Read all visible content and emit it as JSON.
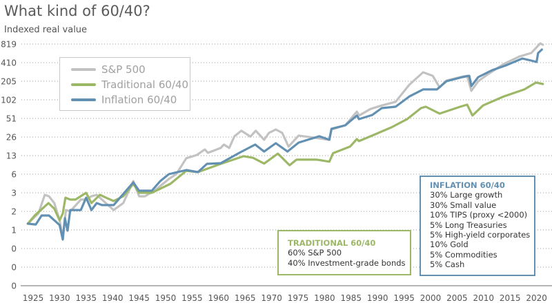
{
  "colors": {
    "sp500": "#c2c2c2",
    "traditional": "#9cb866",
    "inflation": "#6190b2",
    "grid": "#9a9a9a",
    "axis": "#b5b5b5"
  },
  "chart_data": {
    "type": "line",
    "title": "What kind of 60/40?",
    "ylabel": "Indexed real value",
    "xlabel": "",
    "yscale": "log2",
    "ylim": [
      0.1,
      819.2
    ],
    "xlim": [
      1923.5,
      2022
    ],
    "grid": true,
    "legend_placement": "top-left",
    "y_ticks": [
      {
        "value": 0.1,
        "label": "0"
      },
      {
        "value": 0.2,
        "label": "0"
      },
      {
        "value": 0.4,
        "label": "0"
      },
      {
        "value": 0.8,
        "label": "1"
      },
      {
        "value": 1.6,
        "label": "2"
      },
      {
        "value": 3.2,
        "label": "3"
      },
      {
        "value": 6.4,
        "label": "6"
      },
      {
        "value": 12.8,
        "label": "13"
      },
      {
        "value": 25.6,
        "label": "26"
      },
      {
        "value": 51.2,
        "label": "51"
      },
      {
        "value": 102.4,
        "label": "102"
      },
      {
        "value": 204.8,
        "label": "205"
      },
      {
        "value": 409.6,
        "label": "410"
      },
      {
        "value": 819.2,
        "label": "819"
      }
    ],
    "x_ticks": [
      "1925",
      "1930",
      "1935",
      "1940",
      "1945",
      "1950",
      "1955",
      "1960",
      "1965",
      "1970",
      "1975",
      "1980",
      "1985",
      "1990",
      "1995",
      "2000",
      "2005",
      "2010",
      "2015",
      "2020"
    ],
    "series": [
      {
        "name": "S&P 500",
        "key": "sp500",
        "points": [
          [
            1924,
            1.01
          ],
          [
            1926,
            1.48
          ],
          [
            1927.2,
            2.96
          ],
          [
            1928,
            2.81
          ],
          [
            1929,
            2.18
          ],
          [
            1930,
            1.15
          ],
          [
            1930.6,
            0.6
          ],
          [
            1931.2,
            1.68
          ],
          [
            1932,
            1.6
          ],
          [
            1934,
            2.48
          ],
          [
            1935,
            2.48
          ],
          [
            1936,
            2.81
          ],
          [
            1937,
            2.96
          ],
          [
            1938,
            2.48
          ],
          [
            1940.2,
            1.68
          ],
          [
            1942,
            2.18
          ],
          [
            1943.9,
            4.95
          ],
          [
            1945,
            2.81
          ],
          [
            1946.1,
            2.81
          ],
          [
            1948,
            3.5
          ],
          [
            1950.6,
            5.35
          ],
          [
            1952,
            6.4
          ],
          [
            1953.9,
            11.6
          ],
          [
            1955.9,
            13.1
          ],
          [
            1957.4,
            16.1
          ],
          [
            1958,
            14.2
          ],
          [
            1960.4,
            17.0
          ],
          [
            1961,
            19.3
          ],
          [
            1962,
            17.0
          ],
          [
            1963,
            26.3
          ],
          [
            1964.3,
            32.3
          ],
          [
            1966,
            26
          ],
          [
            1967,
            32.3
          ],
          [
            1968.6,
            23.1
          ],
          [
            1969.5,
            29.9
          ],
          [
            1970.8,
            33.9
          ],
          [
            1972,
            29.9
          ],
          [
            1973.2,
            17.9
          ],
          [
            1975.1,
            27.0
          ],
          [
            1978,
            25
          ],
          [
            1980.9,
            23.1
          ],
          [
            1981.3,
            33.9
          ],
          [
            1983.9,
            39.6
          ],
          [
            1986.1,
            66
          ],
          [
            1986.5,
            57
          ],
          [
            1988.7,
            73
          ],
          [
            1990.8,
            83
          ],
          [
            1993.4,
            95
          ],
          [
            1996,
            180
          ],
          [
            1998.6,
            286
          ],
          [
            2000.4,
            251
          ],
          [
            2001.7,
            163
          ],
          [
            2003,
            210
          ],
          [
            2005.6,
            239
          ],
          [
            2006.9,
            251
          ],
          [
            2007.7,
            143
          ],
          [
            2009,
            205
          ],
          [
            2010.8,
            265
          ],
          [
            2013.8,
            389
          ],
          [
            2016.8,
            516
          ],
          [
            2019,
            587
          ],
          [
            2020.7,
            840
          ],
          [
            2021.2,
            798
          ]
        ]
      },
      {
        "name": "Traditional 60/40",
        "key": "traditional",
        "points": [
          [
            1924,
            1.01
          ],
          [
            1925.3,
            1.37
          ],
          [
            1927.9,
            2.18
          ],
          [
            1929,
            1.77
          ],
          [
            1930,
            1.15
          ],
          [
            1930.6,
            1.48
          ],
          [
            1931.1,
            2.67
          ],
          [
            1932,
            2.48
          ],
          [
            1933,
            2.48
          ],
          [
            1935,
            3.2
          ],
          [
            1936,
            2.18
          ],
          [
            1937.6,
            2.96
          ],
          [
            1939,
            2.61
          ],
          [
            1940.2,
            2.35
          ],
          [
            1942,
            2.81
          ],
          [
            1943.9,
            4.47
          ],
          [
            1945,
            3.2
          ],
          [
            1947.4,
            3.2
          ],
          [
            1950.9,
            4.47
          ],
          [
            1953.9,
            7.28
          ],
          [
            1956.1,
            6.91
          ],
          [
            1960.4,
            9.41
          ],
          [
            1964.7,
            12.5
          ],
          [
            1966.5,
            11.8
          ],
          [
            1968.6,
            9.5
          ],
          [
            1971.2,
            13.8
          ],
          [
            1973.4,
            8.93
          ],
          [
            1974.7,
            11.0
          ],
          [
            1978.6,
            11.0
          ],
          [
            1980.9,
            10.2
          ],
          [
            1981.6,
            14.0
          ],
          [
            1984.8,
            17.9
          ],
          [
            1986.1,
            23.7
          ],
          [
            1986.5,
            22.0
          ],
          [
            1989,
            27.0
          ],
          [
            1992.6,
            36.7
          ],
          [
            1995.6,
            50
          ],
          [
            1998.2,
            75.3
          ],
          [
            1999.1,
            79.2
          ],
          [
            2001.7,
            61.3
          ],
          [
            2005.6,
            79.2
          ],
          [
            2006.9,
            85.6
          ],
          [
            2007.9,
            57
          ],
          [
            2009.9,
            83
          ],
          [
            2013.8,
            116
          ],
          [
            2017.7,
            151
          ],
          [
            2019.9,
            195
          ],
          [
            2021.2,
            185
          ]
        ]
      },
      {
        "name": "Inflation 60/40",
        "key": "inflation",
        "points": [
          [
            1924,
            1.01
          ],
          [
            1925.5,
            0.98
          ],
          [
            1926.6,
            1.37
          ],
          [
            1928,
            1.37
          ],
          [
            1929,
            1.15
          ],
          [
            1930,
            0.96
          ],
          [
            1930.6,
            0.56
          ],
          [
            1931,
            1.24
          ],
          [
            1931.5,
            0.78
          ],
          [
            1932,
            1.68
          ],
          [
            1934,
            1.68
          ],
          [
            1935,
            2.67
          ],
          [
            1936,
            1.68
          ],
          [
            1937,
            2.18
          ],
          [
            1938,
            2.02
          ],
          [
            1940.2,
            2.02
          ],
          [
            1942.2,
            3.2
          ],
          [
            1943.9,
            4.7
          ],
          [
            1945,
            3.46
          ],
          [
            1947.4,
            3.46
          ],
          [
            1949,
            4.95
          ],
          [
            1950.6,
            6.4
          ],
          [
            1953.9,
            7.47
          ],
          [
            1956.1,
            6.91
          ],
          [
            1957.8,
            9.41
          ],
          [
            1960.4,
            9.65
          ],
          [
            1963.9,
            14.2
          ],
          [
            1966.9,
            19.3
          ],
          [
            1968.6,
            14.9
          ],
          [
            1970.8,
            20.3
          ],
          [
            1973,
            14.9
          ],
          [
            1975.1,
            20.8
          ],
          [
            1979,
            26.3
          ],
          [
            1980.9,
            23.1
          ],
          [
            1981.3,
            34.8
          ],
          [
            1983.9,
            39.6
          ],
          [
            1986.1,
            57
          ],
          [
            1986.5,
            49.9
          ],
          [
            1989,
            58.2
          ],
          [
            1990.8,
            75.3
          ],
          [
            1993.4,
            79.2
          ],
          [
            1996,
            116
          ],
          [
            1998.6,
            151
          ],
          [
            2001.2,
            151
          ],
          [
            2003,
            205
          ],
          [
            2006,
            239
          ],
          [
            2007.3,
            251
          ],
          [
            2007.7,
            171
          ],
          [
            2009,
            239
          ],
          [
            2011.6,
            309
          ],
          [
            2014.2,
            370
          ],
          [
            2017.3,
            478
          ],
          [
            2019,
            442
          ],
          [
            2020,
            420
          ],
          [
            2020.3,
            587
          ],
          [
            2021,
            667
          ]
        ]
      }
    ]
  },
  "legend": [
    {
      "label": "S&P 500",
      "key": "sp500"
    },
    {
      "label": "Traditional 60/40",
      "key": "traditional"
    },
    {
      "label": "Inflation 60/40",
      "key": "inflation"
    }
  ],
  "notes": {
    "traditional": {
      "title": "TRADITIONAL 60/40",
      "lines": [
        "60% S&P 500",
        "40% Investment-grade bonds"
      ]
    },
    "inflation": {
      "title": "INFLATION 60/40",
      "lines": [
        "30% Large growth",
        "30% Small value",
        "10% TIPS (proxy <2000)",
        "5% Long Treasuries",
        "5% High-yield corporates",
        "10% Gold",
        "5% Commodities",
        "5% Cash"
      ]
    }
  }
}
